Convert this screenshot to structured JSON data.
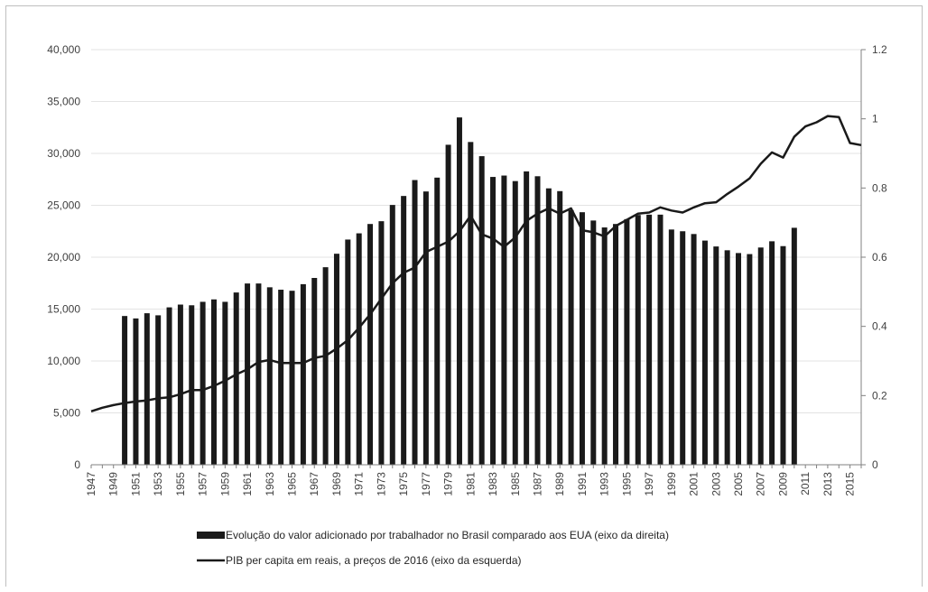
{
  "chart_data": {
    "type": "bar+line",
    "title": "",
    "x": [
      1947,
      1948,
      1949,
      1950,
      1951,
      1952,
      1953,
      1954,
      1955,
      1956,
      1957,
      1958,
      1959,
      1960,
      1961,
      1962,
      1963,
      1964,
      1965,
      1966,
      1967,
      1968,
      1969,
      1970,
      1971,
      1972,
      1973,
      1974,
      1975,
      1976,
      1977,
      1978,
      1979,
      1980,
      1981,
      1982,
      1983,
      1984,
      1985,
      1986,
      1987,
      1988,
      1989,
      1990,
      1991,
      1992,
      1993,
      1994,
      1995,
      1996,
      1997,
      1998,
      1999,
      2000,
      2001,
      2002,
      2003,
      2004,
      2005,
      2006,
      2007,
      2008,
      2009,
      2010,
      2011,
      2012,
      2013,
      2014,
      2015,
      2016
    ],
    "x_tick_labels": [
      "1947",
      "1949",
      "1951",
      "1953",
      "1955",
      "1957",
      "1959",
      "1961",
      "1963",
      "1965",
      "1967",
      "1969",
      "1971",
      "1973",
      "1975",
      "1977",
      "1979",
      "1981",
      "1983",
      "1985",
      "1987",
      "1989",
      "1991",
      "1993",
      "1995",
      "1997",
      "1999",
      "2001",
      "2003",
      "2005",
      "2007",
      "2009",
      "2011",
      "2013",
      "2015"
    ],
    "left_axis": {
      "ticks": [
        "0",
        "5,000",
        "10,000",
        "15,000",
        "20,000",
        "25,000",
        "30,000",
        "35,000",
        "40,000"
      ],
      "range": [
        0,
        40000
      ]
    },
    "right_axis": {
      "ticks": [
        "0",
        "0.2",
        "0.4",
        "0.6",
        "0.8",
        "1",
        "1.2"
      ],
      "range": [
        0,
        1.2
      ]
    },
    "series": [
      {
        "name": "Evolução do valor adicionado por trabalhador no Brasil comparado aos EUA (eixo da direita)",
        "type": "bar",
        "axis": "right",
        "color": "#1a1a1a",
        "values": [
          null,
          null,
          null,
          0.43,
          0.423,
          0.438,
          0.432,
          0.455,
          0.463,
          0.461,
          0.471,
          0.478,
          0.471,
          0.498,
          0.524,
          0.524,
          0.513,
          0.506,
          0.503,
          0.522,
          0.54,
          0.571,
          0.61,
          0.651,
          0.669,
          0.696,
          0.704,
          0.751,
          0.777,
          0.823,
          0.79,
          0.83,
          0.925,
          1.004,
          0.933,
          0.892,
          0.832,
          0.836,
          0.82,
          0.848,
          0.834,
          0.799,
          0.791,
          0.736,
          0.73,
          0.706,
          0.686,
          0.696,
          0.71,
          0.722,
          0.723,
          0.723,
          0.68,
          0.675,
          0.667,
          0.648,
          0.631,
          0.62,
          0.612,
          0.609,
          0.628,
          0.646,
          0.632,
          0.685,
          null,
          null,
          null,
          null,
          null,
          null
        ]
      },
      {
        "name": "PIB per capita em reais, a preços de 2016 (eixo da esquerda)",
        "type": "line",
        "axis": "left",
        "color": "#1a1a1a",
        "values": [
          5150,
          5500,
          5750,
          5950,
          6100,
          6200,
          6400,
          6500,
          6800,
          7200,
          7200,
          7600,
          8100,
          8700,
          9200,
          9900,
          10100,
          9800,
          9800,
          9800,
          10300,
          10500,
          11200,
          12000,
          13200,
          14500,
          16000,
          17500,
          18500,
          19000,
          20500,
          21000,
          21500,
          22500,
          24000,
          22200,
          21800,
          21000,
          21900,
          23500,
          24200,
          24700,
          24200,
          24700,
          22600,
          22400,
          22000,
          23000,
          23600,
          24200,
          24300,
          24800,
          24500,
          24300,
          24800,
          25200,
          25300,
          26100,
          26800,
          27600,
          29000,
          30100,
          29600,
          31600,
          32600,
          33000,
          33600,
          33500,
          31000,
          30800
        ]
      }
    ]
  }
}
